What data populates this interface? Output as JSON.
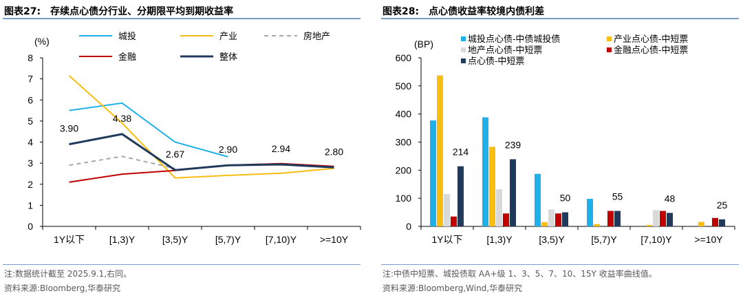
{
  "left": {
    "figure_no": "图表27:",
    "title": "存续点心债分行业、分期限平均到期收益率",
    "note": "注:数据统计截至 2025.9.1,右同。",
    "source": "资料来源:Bloomberg,华泰研究"
  },
  "right": {
    "figure_no": "图表28:",
    "title": "点心债收益率较境内债利差",
    "note": "注:中债中短票、城投债取 AA+级 1、3、5、7、10、15Y 收益率曲线值。",
    "source": "资料来源:Bloomberg,Wind,华泰研究"
  },
  "colors": {
    "chengtou": "#1fb0ea",
    "chanye": "#f7bd10",
    "fangdichan": "#a6a6a6",
    "jinrong": "#c00000",
    "zhengti": "#203a5c",
    "dichan_bar": "#d9d9d9"
  },
  "chart_data": [
    {
      "type": "line",
      "ylabel": "(%)",
      "ylim": [
        0,
        8
      ],
      "yticks": [
        "0",
        "1",
        "2",
        "3",
        "4",
        "5",
        "6",
        "7",
        "8"
      ],
      "categories": [
        "1Y以下",
        "[1,3)Y",
        "[3,5)Y",
        "[5,7)Y",
        "[7,10)Y",
        ">=10Y"
      ],
      "legend": "top",
      "series": [
        {
          "name": "城投",
          "values": [
            5.5,
            5.85,
            4.0,
            3.3,
            null,
            null
          ],
          "style": "solid"
        },
        {
          "name": "产业",
          "values": [
            7.15,
            4.9,
            2.3,
            2.42,
            2.52,
            2.75
          ],
          "style": "solid"
        },
        {
          "name": "房地产",
          "values": [
            2.9,
            3.32,
            2.75,
            null,
            null,
            null
          ],
          "style": "dashed"
        },
        {
          "name": "金融",
          "values": [
            2.1,
            2.48,
            2.65,
            2.9,
            2.98,
            2.85
          ],
          "style": "solid"
        },
        {
          "name": "整体",
          "values": [
            3.9,
            4.38,
            2.67,
            2.9,
            2.94,
            2.8
          ],
          "style": "solid"
        }
      ],
      "data_labels": [
        "3.90",
        "4.38",
        "2.67",
        "2.90",
        "2.94",
        "2.80"
      ]
    },
    {
      "type": "bar",
      "ylabel": "(BP)",
      "ylim": [
        0,
        600
      ],
      "yticks": [
        "0",
        "100",
        "200",
        "300",
        "400",
        "500",
        "600"
      ],
      "categories": [
        "1Y以下",
        "[1,3)Y",
        "[3,5)Y",
        "[5,7)Y",
        "[7,10)Y",
        ">=10Y"
      ],
      "legend": "top",
      "series": [
        {
          "name": "城投点心债-中债城投债",
          "values": [
            377,
            388,
            187,
            98,
            null,
            null
          ]
        },
        {
          "name": "产业点心债-中短票",
          "values": [
            537,
            283,
            15,
            8,
            5,
            16
          ]
        },
        {
          "name": "地产点心债-中短票",
          "values": [
            115,
            132,
            60,
            null,
            58,
            null
          ]
        },
        {
          "name": "金融点心债-中短票",
          "values": [
            35,
            46,
            46,
            55,
            55,
            30
          ]
        },
        {
          "name": "点心债-中短票",
          "values": [
            214,
            239,
            50,
            55,
            48,
            25
          ]
        }
      ],
      "data_labels": [
        "214",
        "239",
        "50",
        "55",
        "48",
        "25"
      ]
    }
  ]
}
